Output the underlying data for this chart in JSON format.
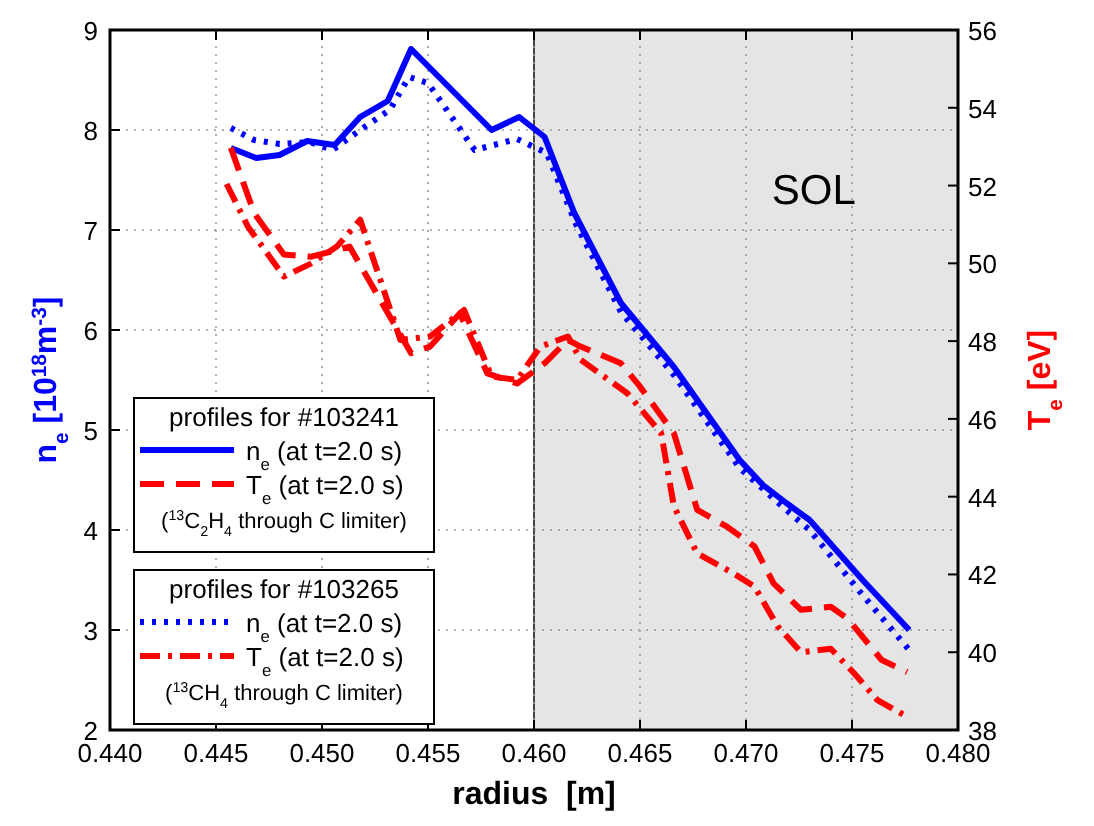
{
  "chart_data": {
    "type": "line",
    "xlabel": "radius  [m]",
    "ylabel": "n$_{e}$ [10$^{18}$m$^{-3}$]",
    "y2label": "T$_{e}$ [eV]",
    "xlim": [
      0.44,
      0.48
    ],
    "xticks": [
      {
        "value": 0.44,
        "label": "0.440"
      },
      {
        "value": 0.445,
        "label": "0.445"
      },
      {
        "value": 0.45,
        "label": "0.450"
      },
      {
        "value": 0.455,
        "label": "0.455"
      },
      {
        "value": 0.46,
        "label": "0.460"
      },
      {
        "value": 0.465,
        "label": "0.465"
      },
      {
        "value": 0.47,
        "label": "0.470"
      },
      {
        "value": 0.475,
        "label": "0.475"
      },
      {
        "value": 0.48,
        "label": "0.480"
      }
    ],
    "ylim": [
      2,
      9
    ],
    "yticks": [
      2,
      3,
      4,
      5,
      6,
      7,
      8,
      9
    ],
    "y2lim": [
      38,
      56
    ],
    "y2ticks": [
      38,
      40,
      42,
      44,
      46,
      48,
      50,
      52,
      54,
      56
    ],
    "grid": true,
    "legend": "bottom left",
    "bands": [
      {
        "axis": "x",
        "from": 0.46,
        "to": 0.48,
        "label": "SOL",
        "color": "#e5e5e5"
      }
    ],
    "ref_lines": [
      {
        "axis": "x",
        "value": 0.46,
        "color": "#444444"
      }
    ],
    "annotations": [
      "profiles for #103241",
      "($^{13}$C$_{2}$H$_{4}$ through C limiter)",
      "profiles for #103265",
      "($^{13}$CH$_{4}$ through C limiter)"
    ],
    "series": [
      {
        "name": "n$_{e}$ (at t=2.0 s)",
        "color": "#0000ff",
        "line_style": "solid",
        "x": [
          0.4457,
          0.4469,
          0.448,
          0.4493,
          0.4506,
          0.4518,
          0.4531,
          0.4542,
          0.458,
          0.4593,
          0.4605,
          0.4619,
          0.4641,
          0.4666,
          0.4697,
          0.4708,
          0.4719,
          0.473,
          0.4755,
          0.4777
        ],
        "values": [
          7.82,
          7.72,
          7.75,
          7.89,
          7.85,
          8.13,
          8.29,
          8.81,
          8.0,
          8.13,
          7.93,
          7.17,
          6.27,
          5.63,
          4.7,
          4.45,
          4.27,
          4.1,
          3.5,
          3.0
        ]
      },
      {
        "name": "T$_{e}$ (at t=2.0 s)",
        "color": "#ff0000",
        "line_style": "dashed",
        "axis": "y2",
        "x": [
          0.4457,
          0.4468,
          0.4482,
          0.4495,
          0.4513,
          0.4542,
          0.4551,
          0.4565,
          0.4578,
          0.4592,
          0.4605,
          0.4616,
          0.4622,
          0.4641,
          0.465,
          0.4666,
          0.4677,
          0.4691,
          0.4704,
          0.4713,
          0.4726,
          0.474,
          0.4748,
          0.4764,
          0.4776
        ],
        "values": [
          52.97,
          51.29,
          50.23,
          50.17,
          50.43,
          47.69,
          47.86,
          48.71,
          47.17,
          46.91,
          47.43,
          48.03,
          47.86,
          47.43,
          46.83,
          45.63,
          43.66,
          43.23,
          42.72,
          41.77,
          41.09,
          41.17,
          40.86,
          39.8,
          39.49
        ]
      },
      {
        "name": "n$_{e}$ (at t=2.0 s)",
        "color": "#0000ff",
        "line_style": "dotted",
        "x": [
          0.4457,
          0.4468,
          0.448,
          0.4494,
          0.4505,
          0.4518,
          0.4532,
          0.4541,
          0.455,
          0.4572,
          0.4592,
          0.4606,
          0.462,
          0.4641,
          0.4666,
          0.4697,
          0.4719,
          0.473,
          0.4755,
          0.4777
        ],
        "values": [
          8.02,
          7.9,
          7.86,
          7.88,
          7.8,
          8.0,
          8.2,
          8.53,
          8.47,
          7.8,
          7.91,
          7.77,
          7.05,
          6.18,
          5.55,
          4.62,
          4.2,
          4.0,
          3.35,
          2.8
        ]
      },
      {
        "name": "T$_{e}$ (at t=2.0 s)",
        "color": "#ff0000",
        "line_style": "dashdot",
        "axis": "y2",
        "x": [
          0.4455,
          0.4465,
          0.4482,
          0.4495,
          0.4507,
          0.4518,
          0.4537,
          0.4551,
          0.4567,
          0.458,
          0.4592,
          0.4603,
          0.4616,
          0.4622,
          0.4644,
          0.466,
          0.4666,
          0.4677,
          0.4694,
          0.4704,
          0.4715,
          0.4726,
          0.474,
          0.4751,
          0.4762,
          0.4776
        ],
        "values": [
          52.04,
          50.95,
          49.66,
          50.0,
          50.43,
          51.12,
          48.03,
          48.12,
          48.8,
          47.09,
          47.0,
          47.86,
          48.12,
          47.52,
          46.66,
          45.63,
          43.75,
          42.54,
          42.03,
          41.69,
          40.66,
          40.0,
          40.09,
          39.46,
          38.77,
          38.34
        ]
      }
    ]
  }
}
